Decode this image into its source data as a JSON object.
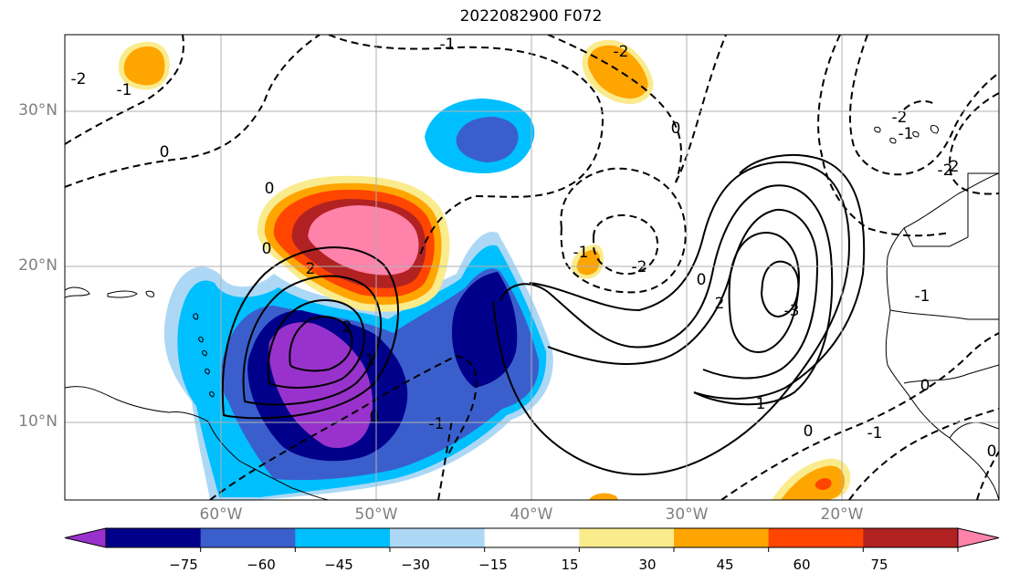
{
  "title": "2022082900 F072",
  "map": {
    "lat_labels": [
      "30°N",
      "20°N",
      "10°N"
    ],
    "lon_labels": [
      "60°W",
      "50°W",
      "40°W",
      "30°W",
      "20°W"
    ],
    "contour_labels": [
      "-2",
      "-1",
      "0",
      "-1",
      "-2",
      "0",
      "-1",
      "0",
      "2",
      "2",
      "1",
      "0",
      "-1",
      "-2",
      "0",
      "2",
      "-2",
      "-3",
      "1",
      "0",
      "-1",
      "-2",
      "-1",
      "0",
      "-1",
      "0",
      "0",
      "2"
    ]
  },
  "colorbar": {
    "colors": [
      "#9932cc",
      "#00008b",
      "#3a5fcd",
      "#00bfff",
      "#add8f5",
      "#ffffff",
      "#faeb8c",
      "#ffa500",
      "#ff4500",
      "#b22222",
      "#ff82ab"
    ],
    "tick_labels": [
      "−75",
      "−60",
      "−45",
      "−30",
      "−15",
      "15",
      "30",
      "45",
      "60",
      "75"
    ]
  }
}
